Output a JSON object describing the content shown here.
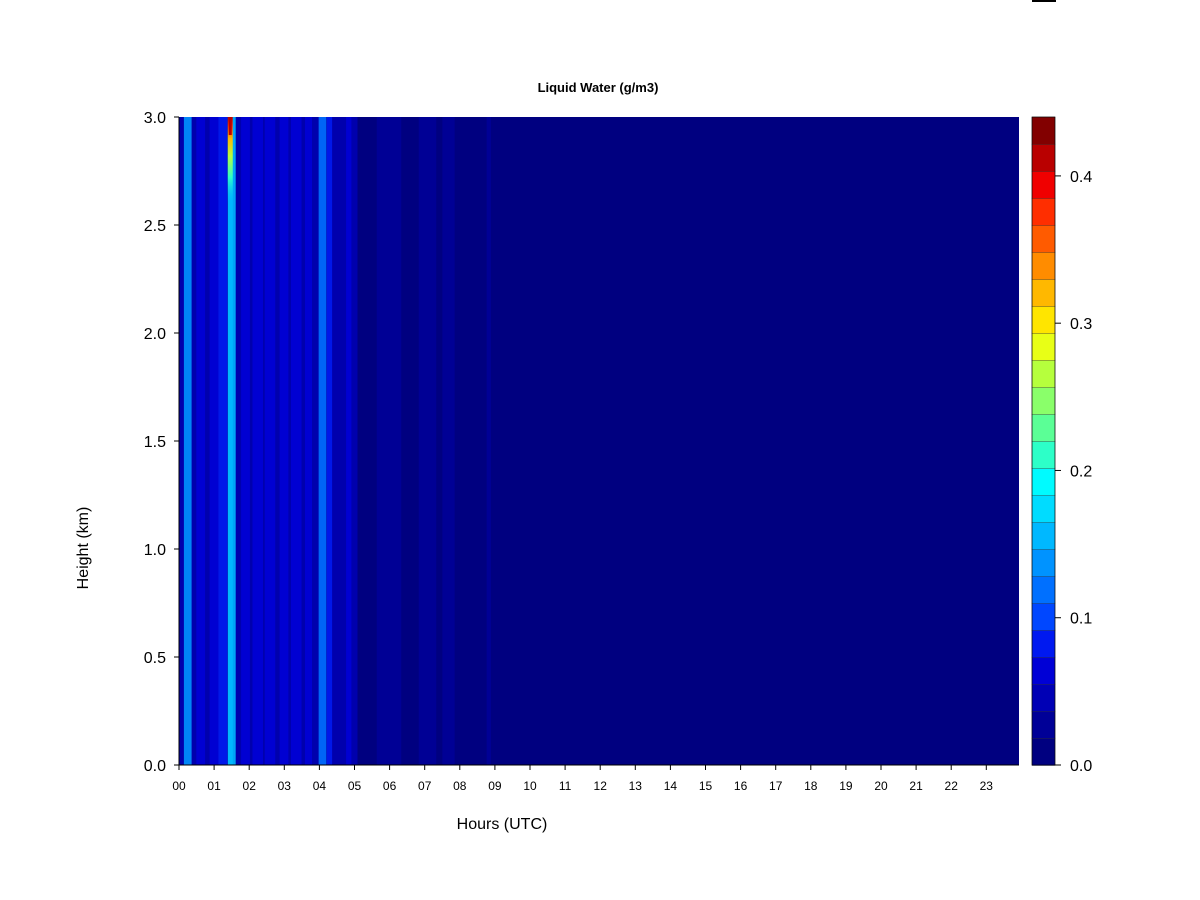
{
  "chart_data": {
    "type": "heatmap",
    "title": "Liquid Water (g/m3)",
    "xlabel": "Hours (UTC)",
    "ylabel": "Height (km)",
    "xlim": [
      0,
      24
    ],
    "ylim": [
      0.0,
      3.0
    ],
    "x_ticks": [
      "00",
      "01",
      "02",
      "03",
      "04",
      "05",
      "06",
      "07",
      "08",
      "09",
      "10",
      "11",
      "12",
      "13",
      "14",
      "15",
      "16",
      "17",
      "18",
      "19",
      "20",
      "21",
      "22",
      "23"
    ],
    "y_ticks": [
      "0.0",
      "0.5",
      "1.0",
      "1.5",
      "2.0",
      "2.5",
      "3.0"
    ],
    "colorbar": {
      "range": [
        0.0,
        0.44
      ],
      "ticks": [
        "0.0",
        "0.1",
        "0.2",
        "0.3",
        "0.4"
      ],
      "tick_values": [
        0.0,
        0.1,
        0.2,
        0.3,
        0.4
      ],
      "levels": [
        "#000080",
        "#000097",
        "#0000b5",
        "#0000d6",
        "#0019f0",
        "#0047ff",
        "#0070ff",
        "#0093ff",
        "#00b8ff",
        "#00dcff",
        "#00fbff",
        "#2dffc8",
        "#5bff96",
        "#8aff6a",
        "#b6ff3d",
        "#e8ff16",
        "#ffe500",
        "#ffb800",
        "#ff8c00",
        "#ff5b00",
        "#ff2e00",
        "#f00000",
        "#b90000",
        "#820000"
      ]
    },
    "background_value": 0.0,
    "streaks": [
      {
        "x": 0.25,
        "w": 0.22,
        "v": 0.13
      },
      {
        "x": 0.62,
        "w": 0.25,
        "v": 0.07
      },
      {
        "x": 1.0,
        "w": 0.25,
        "v": 0.06
      },
      {
        "x": 1.25,
        "w": 0.25,
        "v": 0.08
      },
      {
        "x": 1.55,
        "w": 0.14,
        "v": 0.15
      },
      {
        "x": 1.9,
        "w": 0.25,
        "v": 0.06
      },
      {
        "x": 2.25,
        "w": 0.3,
        "v": 0.07
      },
      {
        "x": 2.6,
        "w": 0.3,
        "v": 0.06
      },
      {
        "x": 3.0,
        "w": 0.25,
        "v": 0.07
      },
      {
        "x": 3.35,
        "w": 0.3,
        "v": 0.06
      },
      {
        "x": 3.7,
        "w": 0.2,
        "v": 0.06
      },
      {
        "x": 4.1,
        "w": 0.22,
        "v": 0.12
      },
      {
        "x": 4.3,
        "w": 0.15,
        "v": 0.09
      },
      {
        "x": 4.85,
        "w": 0.15,
        "v": 0.06
      },
      {
        "x": 6.0,
        "w": 0.7,
        "v": 0.02
      },
      {
        "x": 7.1,
        "w": 0.5,
        "v": 0.03
      },
      {
        "x": 7.7,
        "w": 0.35,
        "v": 0.02
      },
      {
        "x": 8.85,
        "w": 0.12,
        "v": 0.02
      }
    ],
    "peak": {
      "x": 1.45,
      "y_top": 3.0,
      "y_bottom": 2.6,
      "v": 0.42
    }
  }
}
